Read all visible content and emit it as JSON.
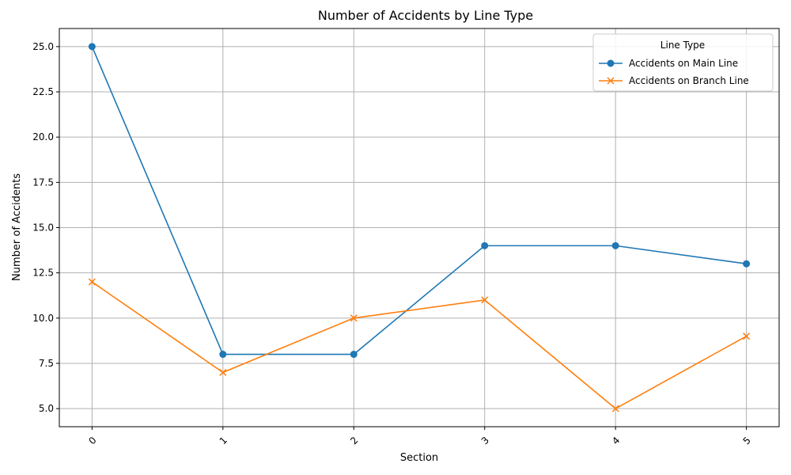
{
  "chart_data": {
    "type": "line",
    "title": "Number of Accidents by Line Type",
    "xlabel": "Section",
    "ylabel": "Number of Accidents",
    "x": [
      0,
      1,
      2,
      3,
      4,
      5
    ],
    "x_tick_labels": [
      "0",
      "1",
      "2",
      "3",
      "4",
      "5"
    ],
    "y_ticks": [
      5.0,
      7.5,
      10.0,
      12.5,
      15.0,
      17.5,
      20.0,
      22.5,
      25.0
    ],
    "y_tick_labels": [
      "5.0",
      "7.5",
      "10.0",
      "12.5",
      "15.0",
      "17.5",
      "20.0",
      "22.5",
      "25.0"
    ],
    "xlim": [
      -0.25,
      5.25
    ],
    "ylim": [
      4.0,
      26.0
    ],
    "grid": true,
    "legend": {
      "title": "Line Type",
      "placement": "top-right"
    },
    "series": [
      {
        "name": "Accidents on Main Line",
        "values": [
          25,
          8,
          8,
          14,
          14,
          13
        ],
        "color": "#1f77b4",
        "marker": "circle"
      },
      {
        "name": "Accidents on Branch Line",
        "values": [
          12,
          7,
          10,
          11,
          5,
          9
        ],
        "color": "#ff7f0e",
        "marker": "x"
      }
    ]
  }
}
